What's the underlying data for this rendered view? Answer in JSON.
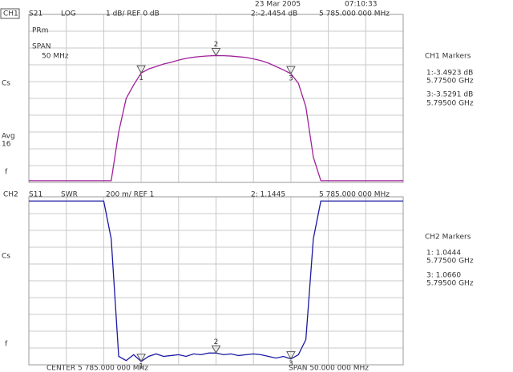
{
  "date": "23 Mar 2005",
  "time": "07:10:33",
  "chart_data": [
    {
      "type": "line",
      "channel": "CH1",
      "format": "LOG",
      "scale": "1 dB/ REF 0 dB",
      "active_marker": "2:-2.4454 dB",
      "active_marker_freq": "5 785.000 000 MHz",
      "annotations": [
        "PRm",
        "SPAN",
        "50 MHz",
        "Cs",
        "Avg",
        "16",
        "f"
      ],
      "marker_panel_title": "CH1 Markers",
      "marker_readouts": [
        "1:-3.4923 dB",
        "5.77500 GHz",
        "3:-3.5291 dB",
        "5.79500 GHz"
      ],
      "markers": [
        {
          "label": "1",
          "x": 5775
        },
        {
          "label": "2",
          "x": 5785
        },
        {
          "label": "3",
          "x": 5795
        }
      ],
      "x": [
        5760,
        5761,
        5762,
        5763,
        5764,
        5765,
        5766,
        5767,
        5768,
        5769,
        5770,
        5771,
        5772,
        5773,
        5774,
        5775,
        5776,
        5777,
        5778,
        5779,
        5780,
        5781,
        5782,
        5783,
        5784,
        5785,
        5786,
        5787,
        5788,
        5789,
        5790,
        5791,
        5792,
        5793,
        5794,
        5795,
        5796,
        5797,
        5798,
        5799,
        5800,
        5801,
        5802,
        5803,
        5804,
        5805,
        5806,
        5807,
        5808,
        5809,
        5810
      ],
      "series": [
        {
          "name": "S21",
          "color": "#a0209a",
          "values": [
            -9.9,
            -9.9,
            -9.9,
            -9.9,
            -9.9,
            -9.9,
            -9.9,
            -9.9,
            -9.9,
            -9.9,
            -9.9,
            -9.9,
            -7.0,
            -5.0,
            -4.2,
            -3.49,
            -3.25,
            -3.1,
            -2.95,
            -2.85,
            -2.72,
            -2.62,
            -2.55,
            -2.5,
            -2.47,
            -2.45,
            -2.46,
            -2.48,
            -2.52,
            -2.56,
            -2.65,
            -2.75,
            -2.9,
            -3.1,
            -3.3,
            -3.53,
            -4.1,
            -5.5,
            -8.5,
            -9.9,
            -9.9,
            -9.9,
            -9.9,
            -9.9,
            -9.9,
            -9.9,
            -9.9,
            -9.9,
            -9.9,
            -9.9,
            -9.9
          ]
        }
      ],
      "xlim": [
        5760,
        5810
      ],
      "ylim": [
        -10,
        0
      ],
      "xticks": [
        5760,
        5765,
        5770,
        5775,
        5780,
        5785,
        5790,
        5795,
        5800,
        5805,
        5810
      ],
      "yticks": [
        -10,
        -9,
        -8,
        -7,
        -6,
        -5,
        -4,
        -3,
        -2,
        -1,
        0
      ],
      "grid": true
    },
    {
      "type": "line",
      "channel": "CH2",
      "format": "SWR",
      "scale": "200 m/ REF 1",
      "active_marker": "2: 1.1445",
      "active_marker_freq": "5 785.000 000 MHz",
      "annotations": [
        "Cs",
        "f"
      ],
      "marker_panel_title": "CH2 Markers",
      "marker_readouts": [
        "1: 1.0444",
        "5.77500 GHz",
        "3: 1.0660",
        "5.79500 GHz"
      ],
      "markers": [
        {
          "label": "1",
          "x": 5775
        },
        {
          "label": "2",
          "x": 5785
        },
        {
          "label": "3",
          "x": 5795
        }
      ],
      "x": [
        5760,
        5761,
        5762,
        5763,
        5764,
        5765,
        5766,
        5767,
        5768,
        5769,
        5770,
        5771,
        5772,
        5773,
        5774,
        5775,
        5776,
        5777,
        5778,
        5779,
        5780,
        5781,
        5782,
        5783,
        5784,
        5785,
        5786,
        5787,
        5788,
        5789,
        5790,
        5791,
        5792,
        5793,
        5794,
        5795,
        5796,
        5797,
        5798,
        5799,
        5800,
        5801,
        5802,
        5803,
        5804,
        5805,
        5806,
        5807,
        5808,
        5809,
        5810
      ],
      "series": [
        {
          "name": "S11",
          "color": "#1a1aa0",
          "values": [
            2.95,
            2.95,
            2.95,
            2.95,
            2.95,
            2.95,
            2.95,
            2.95,
            2.95,
            2.95,
            2.95,
            2.5,
            1.1,
            1.05,
            1.12,
            1.04,
            1.1,
            1.13,
            1.1,
            1.11,
            1.12,
            1.1,
            1.13,
            1.12,
            1.14,
            1.14,
            1.12,
            1.13,
            1.11,
            1.12,
            1.13,
            1.12,
            1.1,
            1.08,
            1.1,
            1.07,
            1.12,
            1.3,
            2.5,
            2.95,
            2.95,
            2.95,
            2.95,
            2.95,
            2.95,
            2.95,
            2.95,
            2.95,
            2.95,
            2.95,
            2.95
          ]
        }
      ],
      "xlim": [
        5760,
        5810
      ],
      "ylim": [
        1,
        3
      ],
      "xticks": [
        5760,
        5765,
        5770,
        5775,
        5780,
        5785,
        5790,
        5795,
        5800,
        5805,
        5810
      ],
      "yticks": [
        1,
        1.2,
        1.4,
        1.6,
        1.8,
        2,
        2.2,
        2.4,
        2.6,
        2.8,
        3
      ],
      "grid": true
    }
  ],
  "footer": {
    "center": "CENTER 5 785.000 000 MHz",
    "span": "SPAN 50.000 000 MHz"
  }
}
